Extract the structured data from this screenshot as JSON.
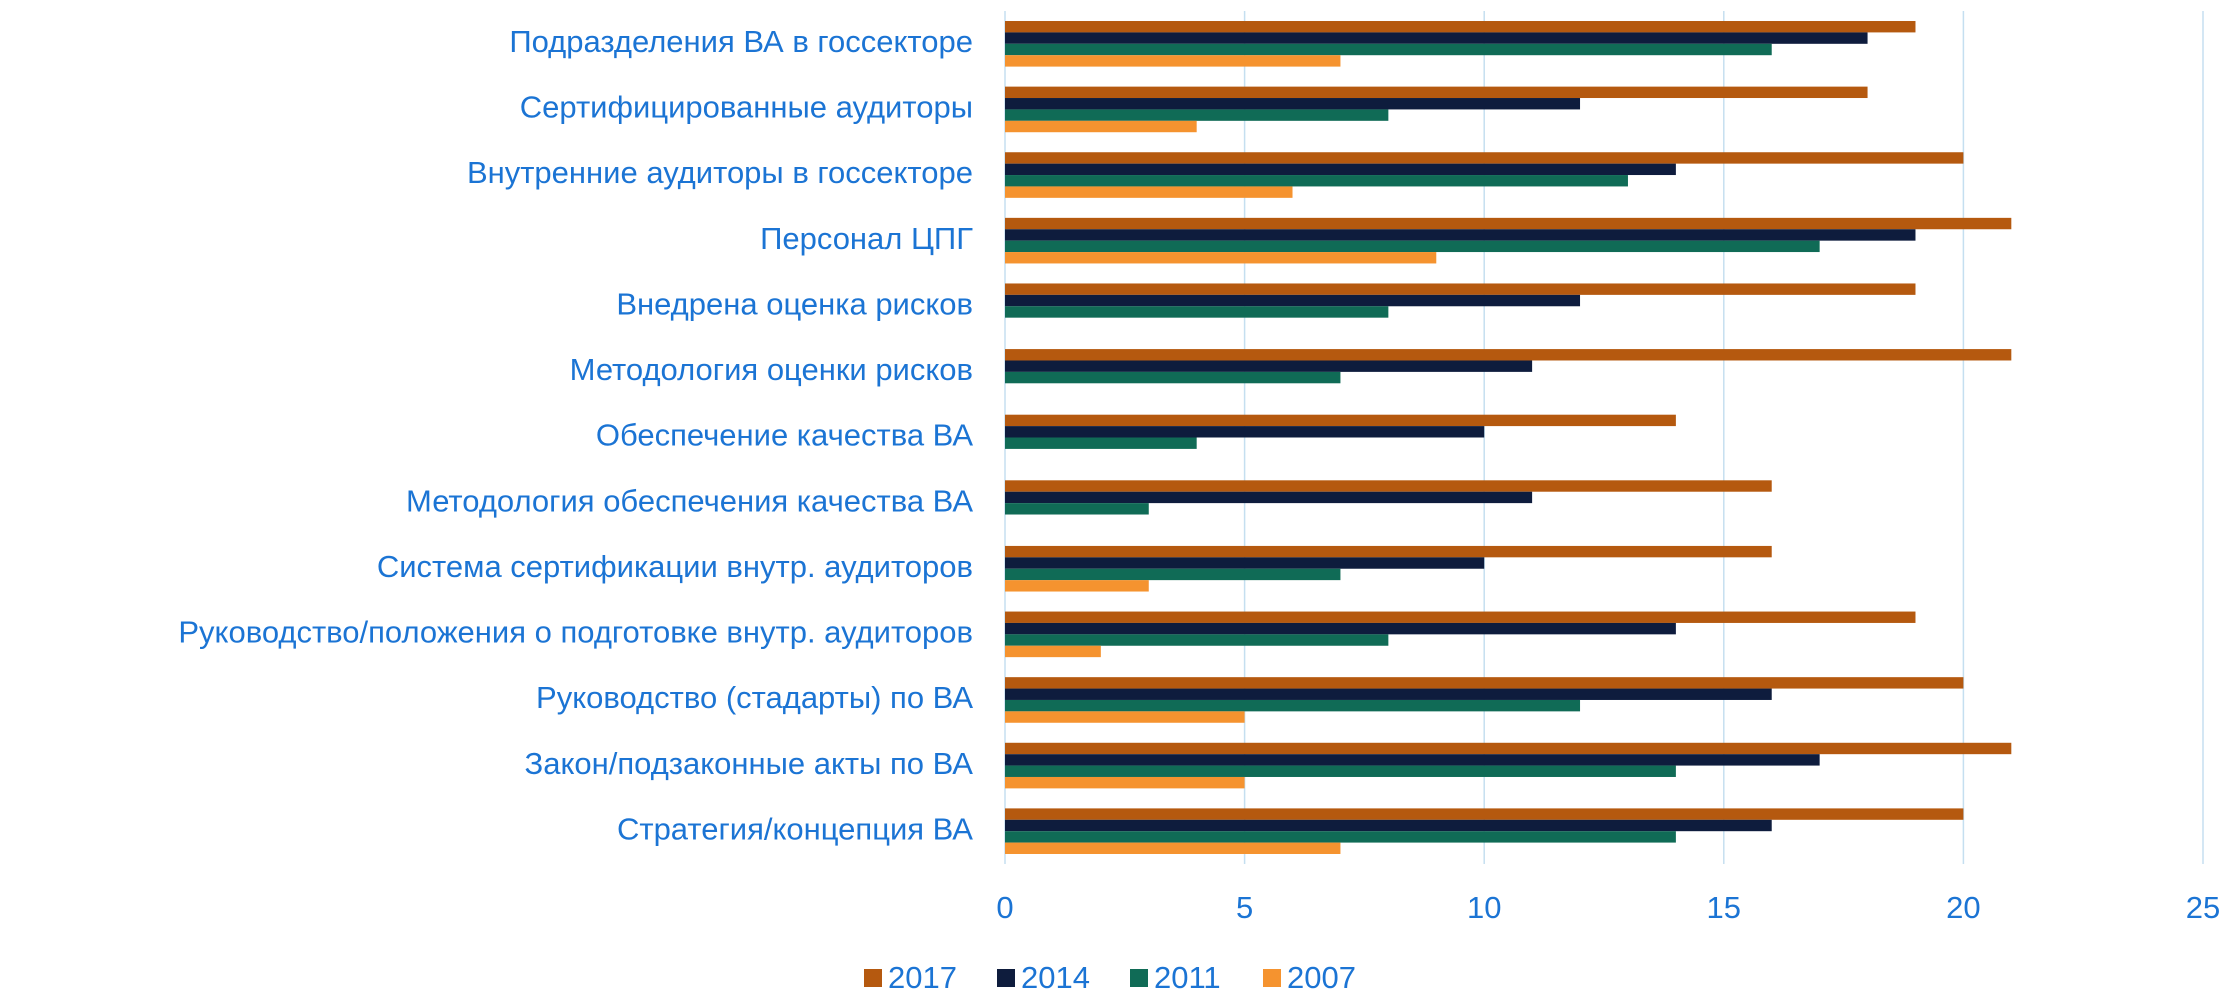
{
  "chart_data": {
    "type": "barh",
    "categories": [
      "Подразделения ВА в госсекторе",
      "Сертифицированные аудиторы",
      "Внутренние аудиторы в госсекторе",
      "Персонал ЦПГ",
      "Внедрена оценка рисков",
      "Методология оценки рисков",
      "Обеспечение качества ВА",
      "Методология обеспечения качества ВА",
      "Система сертификации внутр. аудиторов",
      "Руководство/положения о подготовке внутр. аудиторов",
      "Руководство (стадарты) по ВА",
      "Закон/подзаконные акты по ВА",
      "Стратегия/концепция ВА"
    ],
    "series": [
      {
        "name": "2017",
        "color": "#b5590f",
        "values": [
          19,
          18,
          20,
          21,
          19,
          21,
          14,
          16,
          16,
          19,
          20,
          21,
          20
        ]
      },
      {
        "name": "2014",
        "color": "#0e1c3d",
        "values": [
          18,
          12,
          14,
          19,
          12,
          11,
          10,
          11,
          10,
          14,
          16,
          17,
          16
        ]
      },
      {
        "name": "2011",
        "color": "#106b56",
        "values": [
          16,
          8,
          13,
          17,
          8,
          7,
          4,
          3,
          7,
          8,
          12,
          14,
          14
        ]
      },
      {
        "name": "2007",
        "color": "#f5932f",
        "values": [
          7,
          4,
          6,
          9,
          0,
          0,
          0,
          0,
          3,
          2,
          5,
          5,
          7
        ]
      }
    ],
    "xlim": [
      0,
      25
    ],
    "xticks": [
      0,
      5,
      10,
      15,
      20,
      25
    ],
    "grid": true,
    "legend": "bottom"
  }
}
